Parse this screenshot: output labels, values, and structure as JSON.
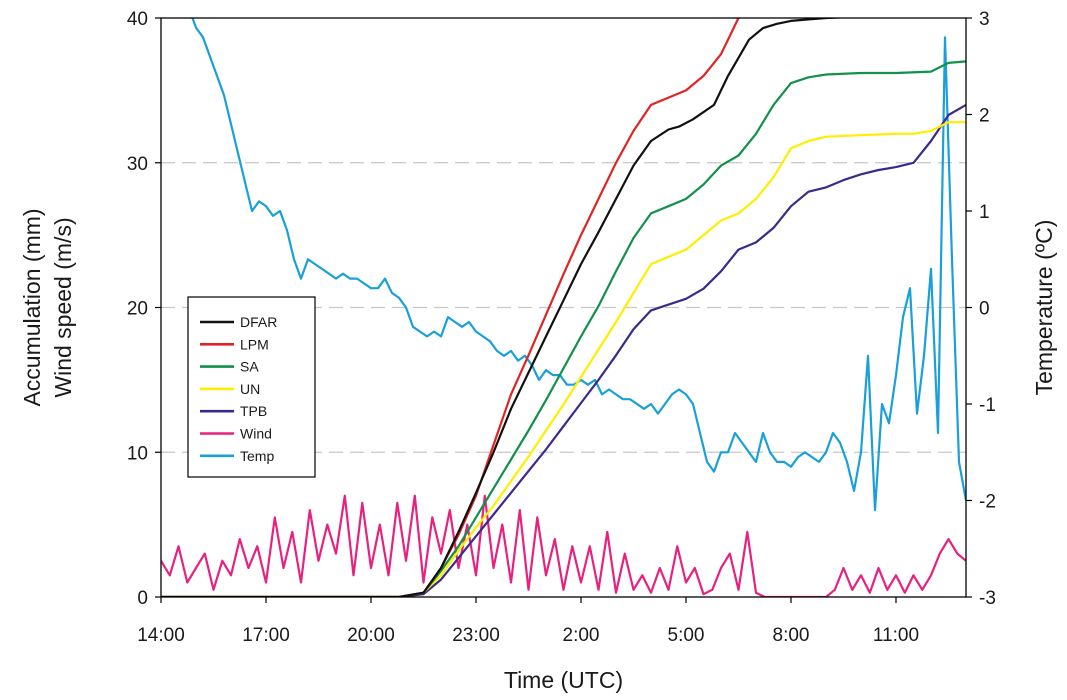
{
  "chart_data": {
    "type": "line",
    "xlabel": "Time (UTC)",
    "ylabel_left": [
      "Accumulation (mm)",
      "Wind speed (m/s)"
    ],
    "ylabel_right": "Temperature (ºC)",
    "x_unit": "hours since 14:00 UTC",
    "xlim": [
      0,
      23
    ],
    "ylim_left": [
      0,
      40
    ],
    "ylim_right": [
      -3,
      3
    ],
    "x_ticks": [
      {
        "x": 0,
        "label": "14:00"
      },
      {
        "x": 3,
        "label": "17:00"
      },
      {
        "x": 6,
        "label": "20:00"
      },
      {
        "x": 9,
        "label": "23:00"
      },
      {
        "x": 12,
        "label": "2:00"
      },
      {
        "x": 15,
        "label": "5:00"
      },
      {
        "x": 18,
        "label": "8:00"
      },
      {
        "x": 21,
        "label": "11:00"
      }
    ],
    "y_ticks_left": [
      "0",
      "10",
      "20",
      "30",
      "40"
    ],
    "y_ticks_right": [
      "-3",
      "-2",
      "-1",
      "0",
      "1",
      "2",
      "3"
    ],
    "grid": "dashed horizontal at 10, 20, 30",
    "legend_position": "center-left",
    "series": [
      {
        "name": "DFAR",
        "color": "#111111",
        "axis": "left",
        "x": [
          0,
          6.8,
          7.5,
          8.0,
          8.5,
          9.0,
          9.5,
          10.0,
          10.5,
          11.0,
          11.5,
          12.0,
          12.5,
          13.0,
          13.5,
          14.0,
          14.5,
          14.8,
          15.2,
          15.8,
          16.2,
          16.8,
          17.2,
          17.6,
          18.0,
          18.5,
          19.0,
          20.0,
          21.0,
          22.0,
          22.5,
          23.0
        ],
        "y": [
          0,
          0,
          0.3,
          2.0,
          4.5,
          7.2,
          10.0,
          13.0,
          15.5,
          18.0,
          20.5,
          23.0,
          25.2,
          27.5,
          29.8,
          31.5,
          32.3,
          32.5,
          33.0,
          34.0,
          36.0,
          38.5,
          39.3,
          39.6,
          39.8,
          39.9,
          40.0,
          40.1,
          40.2,
          40.3,
          40.3,
          40.4
        ]
      },
      {
        "name": "LPM",
        "color": "#e02424",
        "axis": "left",
        "x": [
          0,
          6.8,
          7.5,
          8.0,
          8.5,
          9.0,
          9.5,
          10.0,
          10.5,
          11.0,
          11.5,
          12.0,
          12.5,
          13.0,
          13.5,
          14.0,
          14.5,
          15.0,
          15.5,
          16.0,
          16.5,
          17.0,
          17.5,
          18.0,
          19.0,
          20.0,
          21.0,
          22.0,
          23.0
        ],
        "y": [
          0,
          0,
          0.3,
          2.0,
          4.3,
          7.0,
          10.5,
          14.0,
          16.7,
          19.5,
          22.3,
          25.0,
          27.5,
          30.0,
          32.2,
          34.0,
          34.5,
          35.0,
          36.0,
          37.5,
          40.0,
          42.3,
          43.0,
          43.1,
          43.2,
          43.2,
          43.3,
          43.3,
          43.4
        ]
      },
      {
        "name": "SA",
        "color": "#12914a",
        "axis": "left",
        "x": [
          0,
          6.8,
          7.5,
          8.0,
          8.5,
          9.0,
          9.5,
          10.0,
          10.5,
          11.0,
          11.5,
          12.0,
          12.5,
          13.0,
          13.5,
          14.0,
          14.5,
          15.0,
          15.5,
          16.0,
          16.5,
          17.0,
          17.5,
          18.0,
          18.5,
          19.0,
          20.0,
          21.0,
          22.0,
          22.5,
          23.0
        ],
        "y": [
          0,
          0,
          0.3,
          1.8,
          3.5,
          5.5,
          7.5,
          9.5,
          11.5,
          13.6,
          15.8,
          18.0,
          20.1,
          22.5,
          24.8,
          26.5,
          27.0,
          27.5,
          28.5,
          29.8,
          30.5,
          32.0,
          34.0,
          35.5,
          35.9,
          36.1,
          36.2,
          36.2,
          36.3,
          36.9,
          37.0
        ]
      },
      {
        "name": "UN",
        "color": "#ffee00",
        "axis": "left",
        "x": [
          0,
          6.8,
          7.5,
          8.0,
          8.5,
          9.0,
          9.5,
          10.0,
          10.5,
          11.0,
          11.5,
          12.0,
          12.5,
          13.0,
          13.5,
          14.0,
          14.5,
          15.0,
          15.5,
          16.0,
          16.5,
          17.0,
          17.5,
          18.0,
          18.5,
          19.0,
          20.0,
          21.0,
          21.5,
          22.0,
          22.5,
          23.0
        ],
        "y": [
          0,
          0,
          0.3,
          1.5,
          3.2,
          4.8,
          6.3,
          8.0,
          9.7,
          11.5,
          13.3,
          15.2,
          17.1,
          19.0,
          21.0,
          23.0,
          23.5,
          24.0,
          25.0,
          26.0,
          26.5,
          27.5,
          29.0,
          31.0,
          31.5,
          31.8,
          31.9,
          32.0,
          32.0,
          32.2,
          32.8,
          32.8
        ]
      },
      {
        "name": "TPB",
        "color": "#3b2a8c",
        "axis": "left",
        "x": [
          0,
          6.8,
          7.5,
          8.0,
          8.5,
          9.0,
          9.5,
          10.0,
          10.5,
          11.0,
          11.5,
          12.0,
          12.5,
          13.0,
          13.5,
          14.0,
          14.5,
          15.0,
          15.5,
          16.0,
          16.5,
          17.0,
          17.5,
          18.0,
          18.5,
          19.0,
          19.5,
          20.0,
          20.5,
          21.0,
          21.5,
          22.0,
          22.5,
          23.0
        ],
        "y": [
          0,
          0,
          0.2,
          1.2,
          2.7,
          4.2,
          5.7,
          7.2,
          8.7,
          10.2,
          11.8,
          13.4,
          15.0,
          16.7,
          18.5,
          19.8,
          20.2,
          20.6,
          21.3,
          22.5,
          24.0,
          24.5,
          25.5,
          27.0,
          28.0,
          28.3,
          28.8,
          29.2,
          29.5,
          29.7,
          30.0,
          31.5,
          33.3,
          34.0
        ]
      },
      {
        "name": "Wind",
        "color": "#e8217f",
        "axis": "left",
        "x": [
          0,
          0.25,
          0.5,
          0.75,
          1.0,
          1.25,
          1.5,
          1.75,
          2.0,
          2.25,
          2.5,
          2.75,
          3.0,
          3.25,
          3.5,
          3.75,
          4.0,
          4.25,
          4.5,
          4.75,
          5.0,
          5.25,
          5.5,
          5.75,
          6.0,
          6.25,
          6.5,
          6.75,
          7.0,
          7.25,
          7.5,
          7.75,
          8.0,
          8.25,
          8.5,
          8.75,
          9.0,
          9.25,
          9.5,
          9.75,
          10.0,
          10.25,
          10.5,
          10.75,
          11.0,
          11.25,
          11.5,
          11.75,
          12.0,
          12.25,
          12.5,
          12.75,
          13.0,
          13.25,
          13.5,
          13.75,
          14.0,
          14.25,
          14.5,
          14.75,
          15.0,
          15.25,
          15.5,
          15.75,
          16.0,
          16.25,
          16.5,
          16.75,
          17.0,
          17.25,
          17.5,
          17.75,
          18.0,
          18.25,
          18.5,
          18.75,
          19.0,
          19.25,
          19.5,
          19.75,
          20.0,
          20.25,
          20.5,
          20.75,
          21.0,
          21.25,
          21.5,
          21.75,
          22.0,
          22.25,
          22.5,
          22.75,
          23.0
        ],
        "y": [
          2.5,
          1.5,
          3.5,
          1.0,
          2.0,
          3.0,
          0.5,
          2.5,
          1.5,
          4.0,
          2.0,
          3.5,
          1.0,
          5.5,
          2.0,
          4.5,
          1.0,
          6.0,
          2.5,
          5.0,
          3.0,
          7.0,
          1.5,
          6.5,
          2.0,
          5.0,
          1.5,
          6.5,
          2.5,
          7.0,
          1.0,
          5.5,
          3.0,
          6.0,
          2.0,
          5.0,
          1.5,
          7.0,
          2.0,
          5.0,
          1.0,
          6.0,
          0.5,
          5.5,
          1.5,
          4.0,
          0.5,
          3.5,
          1.0,
          3.5,
          0.5,
          4.5,
          0.3,
          3.0,
          0.5,
          1.5,
          0.3,
          2.0,
          0.5,
          3.5,
          1.0,
          2.0,
          0.2,
          0.5,
          2.0,
          3.0,
          0.5,
          4.5,
          0.3,
          0,
          0,
          0,
          0,
          0,
          0,
          0,
          0,
          0.5,
          2.0,
          0.5,
          1.5,
          0.3,
          2.0,
          0.5,
          1.5,
          0.3,
          1.5,
          0.5,
          1.5,
          3.0,
          4.0,
          3.0,
          2.5
        ]
      },
      {
        "name": "Temp",
        "color": "#1aa0d8",
        "axis": "right",
        "x": [
          0.9,
          1.0,
          1.2,
          1.4,
          1.6,
          1.8,
          2.0,
          2.2,
          2.4,
          2.6,
          2.8,
          3.0,
          3.2,
          3.4,
          3.6,
          3.8,
          4.0,
          4.2,
          4.4,
          4.6,
          4.8,
          5.0,
          5.2,
          5.4,
          5.6,
          5.8,
          6.0,
          6.2,
          6.4,
          6.6,
          6.8,
          7.0,
          7.2,
          7.4,
          7.6,
          7.8,
          8.0,
          8.2,
          8.4,
          8.6,
          8.8,
          9.0,
          9.2,
          9.4,
          9.6,
          9.8,
          10.0,
          10.2,
          10.4,
          10.6,
          10.8,
          11.0,
          11.2,
          11.4,
          11.6,
          11.8,
          12.0,
          12.2,
          12.4,
          12.6,
          12.8,
          13.0,
          13.2,
          13.4,
          13.6,
          13.8,
          14.0,
          14.2,
          14.4,
          14.6,
          14.8,
          15.0,
          15.2,
          15.4,
          15.6,
          15.8,
          16.0,
          16.2,
          16.4,
          16.6,
          16.8,
          17.0,
          17.2,
          17.4,
          17.6,
          17.8,
          18.0,
          18.2,
          18.4,
          18.6,
          18.8,
          19.0,
          19.2,
          19.4,
          19.6,
          19.8,
          20.0,
          20.2,
          20.4,
          20.6,
          20.8,
          21.0,
          21.2,
          21.4,
          21.6,
          21.8,
          22.0,
          22.2,
          22.4,
          22.6,
          22.8,
          23.0
        ],
        "y": [
          3.0,
          2.9,
          2.8,
          2.6,
          2.4,
          2.2,
          1.9,
          1.6,
          1.3,
          1.0,
          1.1,
          1.05,
          0.95,
          1.0,
          0.8,
          0.5,
          0.3,
          0.5,
          0.45,
          0.4,
          0.35,
          0.3,
          0.35,
          0.3,
          0.3,
          0.25,
          0.2,
          0.2,
          0.3,
          0.15,
          0.1,
          0.0,
          -0.2,
          -0.25,
          -0.3,
          -0.25,
          -0.3,
          -0.1,
          -0.15,
          -0.2,
          -0.15,
          -0.25,
          -0.3,
          -0.35,
          -0.45,
          -0.5,
          -0.45,
          -0.55,
          -0.5,
          -0.6,
          -0.75,
          -0.65,
          -0.7,
          -0.7,
          -0.8,
          -0.8,
          -0.75,
          -0.8,
          -0.75,
          -0.9,
          -0.85,
          -0.9,
          -0.95,
          -0.95,
          -1.0,
          -1.05,
          -1.0,
          -1.1,
          -1.0,
          -0.9,
          -0.85,
          -0.9,
          -1.0,
          -1.3,
          -1.6,
          -1.7,
          -1.5,
          -1.5,
          -1.3,
          -1.4,
          -1.5,
          -1.6,
          -1.3,
          -1.5,
          -1.6,
          -1.6,
          -1.65,
          -1.55,
          -1.5,
          -1.55,
          -1.6,
          -1.5,
          -1.3,
          -1.4,
          -1.6,
          -1.9,
          -1.5,
          -0.5,
          -2.1,
          -1.0,
          -1.2,
          -0.7,
          -0.1,
          0.2,
          -1.1,
          -0.5,
          0.4,
          -1.3,
          2.8,
          0.5,
          -1.6,
          -2.0
        ]
      }
    ]
  }
}
